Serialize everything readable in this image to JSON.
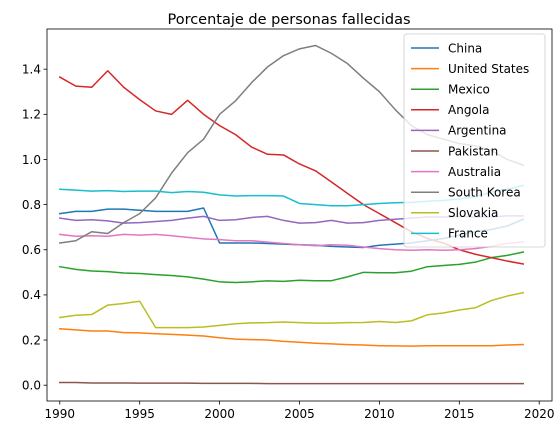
{
  "chart_data": {
    "type": "line",
    "title": "Porcentaje de personas fallecidas",
    "xlabel": "",
    "ylabel": "",
    "xlim": [
      1989.2,
      2020.8
    ],
    "ylim": [
      -0.07,
      1.578
    ],
    "x_ticks": [
      "1990",
      "1995",
      "2000",
      "2005",
      "2010",
      "2015",
      "2020"
    ],
    "y_ticks": [
      "0.0",
      "0.2",
      "0.4",
      "0.6",
      "0.8",
      "1.0",
      "1.2",
      "1.4"
    ],
    "legend_position": "top-right",
    "grid": false,
    "x": [
      1990,
      1991,
      1992,
      1993,
      1994,
      1995,
      1996,
      1997,
      1998,
      1999,
      2000,
      2001,
      2002,
      2003,
      2004,
      2005,
      2006,
      2007,
      2008,
      2009,
      2010,
      2011,
      2012,
      2013,
      2014,
      2015,
      2016,
      2017,
      2018,
      2019
    ],
    "series": [
      {
        "name": "China",
        "color": "#1f77b4",
        "values": [
          0.76,
          0.77,
          0.77,
          0.78,
          0.78,
          0.775,
          0.77,
          0.77,
          0.77,
          0.785,
          0.63,
          0.63,
          0.63,
          0.628,
          0.625,
          0.622,
          0.62,
          0.615,
          0.612,
          0.61,
          0.62,
          0.625,
          0.63,
          0.64,
          0.65,
          0.665,
          0.68,
          0.69,
          0.705,
          0.735
        ]
      },
      {
        "name": "United States",
        "color": "#ff7f0e",
        "values": [
          0.25,
          0.245,
          0.24,
          0.24,
          0.233,
          0.232,
          0.228,
          0.225,
          0.222,
          0.218,
          0.21,
          0.204,
          0.202,
          0.2,
          0.194,
          0.19,
          0.186,
          0.183,
          0.18,
          0.178,
          0.175,
          0.174,
          0.173,
          0.175,
          0.175,
          0.175,
          0.175,
          0.175,
          0.178,
          0.18
        ]
      },
      {
        "name": "Mexico",
        "color": "#2ca02c",
        "values": [
          0.525,
          0.513,
          0.506,
          0.503,
          0.497,
          0.495,
          0.49,
          0.486,
          0.48,
          0.47,
          0.458,
          0.455,
          0.458,
          0.462,
          0.46,
          0.465,
          0.463,
          0.463,
          0.48,
          0.5,
          0.498,
          0.498,
          0.505,
          0.525,
          0.53,
          0.535,
          0.545,
          0.565,
          0.575,
          0.59
        ]
      },
      {
        "name": "Angola",
        "color": "#d62728",
        "values": [
          1.365,
          1.325,
          1.32,
          1.393,
          1.32,
          1.265,
          1.215,
          1.2,
          1.262,
          1.2,
          1.15,
          1.11,
          1.055,
          1.023,
          1.02,
          0.98,
          0.95,
          0.9,
          0.85,
          0.8,
          0.76,
          0.72,
          0.68,
          0.65,
          0.63,
          0.6,
          0.58,
          0.565,
          0.55,
          0.537
        ]
      },
      {
        "name": "Argentina",
        "color": "#9467bd",
        "values": [
          0.74,
          0.73,
          0.733,
          0.728,
          0.718,
          0.72,
          0.725,
          0.73,
          0.74,
          0.748,
          0.73,
          0.733,
          0.743,
          0.748,
          0.73,
          0.718,
          0.72,
          0.73,
          0.718,
          0.72,
          0.73,
          0.735,
          0.74,
          0.745,
          0.745,
          0.748,
          0.745,
          0.745,
          0.75,
          0.75
        ]
      },
      {
        "name": "Pakistan",
        "color": "#8c564b",
        "values": [
          0.012,
          0.012,
          0.01,
          0.01,
          0.01,
          0.009,
          0.009,
          0.009,
          0.009,
          0.008,
          0.008,
          0.008,
          0.008,
          0.007,
          0.007,
          0.007,
          0.007,
          0.007,
          0.007,
          0.007,
          0.007,
          0.007,
          0.007,
          0.007,
          0.007,
          0.007,
          0.007,
          0.007,
          0.007,
          0.007
        ]
      },
      {
        "name": "Australia",
        "color": "#e377c2",
        "values": [
          0.668,
          0.66,
          0.662,
          0.66,
          0.668,
          0.665,
          0.668,
          0.662,
          0.655,
          0.648,
          0.645,
          0.64,
          0.64,
          0.634,
          0.628,
          0.622,
          0.618,
          0.622,
          0.62,
          0.612,
          0.605,
          0.6,
          0.598,
          0.6,
          0.598,
          0.6,
          0.605,
          0.615,
          0.628,
          0.635
        ]
      },
      {
        "name": "South Korea",
        "color": "#7f7f7f",
        "values": [
          0.63,
          0.64,
          0.68,
          0.672,
          0.72,
          0.76,
          0.83,
          0.94,
          1.03,
          1.09,
          1.2,
          1.26,
          1.34,
          1.41,
          1.46,
          1.49,
          1.505,
          1.47,
          1.425,
          1.36,
          1.3,
          1.22,
          1.15,
          1.11,
          1.09,
          1.07,
          1.06,
          1.04,
          1.0,
          0.975
        ]
      },
      {
        "name": "Slovakia",
        "color": "#bcbd22",
        "values": [
          0.3,
          0.31,
          0.313,
          0.355,
          0.362,
          0.372,
          0.255,
          0.255,
          0.255,
          0.258,
          0.265,
          0.272,
          0.276,
          0.277,
          0.28,
          0.277,
          0.275,
          0.275,
          0.277,
          0.278,
          0.282,
          0.278,
          0.285,
          0.312,
          0.32,
          0.333,
          0.343,
          0.375,
          0.395,
          0.41
        ]
      },
      {
        "name": "France",
        "color": "#17becf",
        "values": [
          0.868,
          0.864,
          0.86,
          0.862,
          0.858,
          0.86,
          0.86,
          0.853,
          0.858,
          0.855,
          0.843,
          0.838,
          0.84,
          0.84,
          0.838,
          0.805,
          0.8,
          0.795,
          0.795,
          0.8,
          0.805,
          0.808,
          0.81,
          0.815,
          0.818,
          0.825,
          0.835,
          0.855,
          0.868,
          0.885
        ]
      }
    ]
  }
}
